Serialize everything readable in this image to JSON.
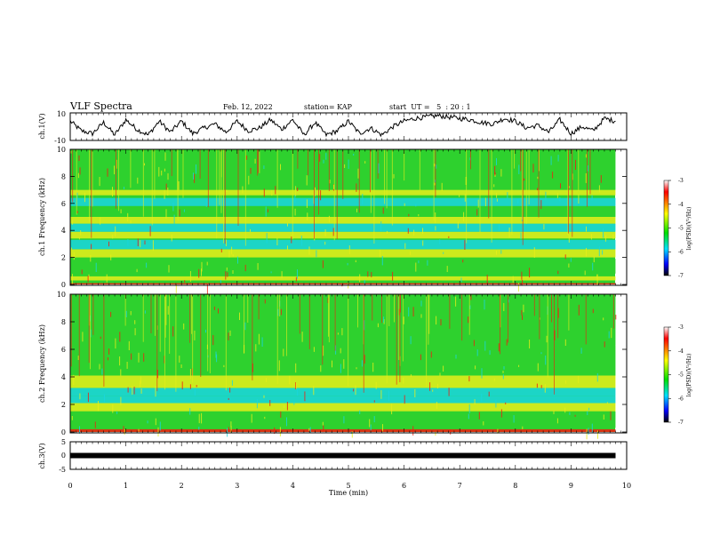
{
  "header": {
    "title": "VLF Spectra",
    "date": "Feb. 12, 2022",
    "station": "station= KAP",
    "start": "start  UT =   5  : 20 : 1"
  },
  "colors": {
    "trace": "#000000",
    "frame": "#000000",
    "spectrogram_bg": "#2ed12e"
  },
  "chart_data": [
    {
      "type": "line",
      "panel": "ch1_waveform",
      "ylabel": "ch.1(V)",
      "ylim": [
        -10,
        10
      ],
      "yticks": [
        "10",
        "-10"
      ],
      "xlim": [
        0,
        10
      ],
      "x_extent": [
        0,
        9.8
      ],
      "series": [
        {
          "x": [
            0,
            0.2,
            0.4,
            0.6,
            0.8,
            1.0,
            1.2,
            1.4,
            1.6,
            1.8,
            2.0,
            2.2,
            2.4,
            2.6,
            2.8,
            3.0,
            3.2,
            3.4,
            3.6,
            3.8,
            4.0,
            4.2,
            4.4,
            4.6,
            4.8,
            5.0,
            5.2,
            5.4,
            5.6,
            5.8,
            6.0,
            6.2,
            6.4,
            6.6,
            6.8,
            7.0,
            7.2,
            7.4,
            7.6,
            7.8,
            8.0,
            8.2,
            8.4,
            8.6,
            8.8,
            9.0,
            9.2,
            9.4,
            9.6,
            9.8
          ],
          "values": [
            4,
            -3,
            -5,
            3,
            -6,
            5,
            -2,
            -6,
            4,
            -4,
            4,
            -5,
            -1,
            2,
            -4,
            4,
            -3,
            -1,
            5,
            -2,
            5,
            -6,
            3,
            -6,
            -3,
            4,
            -5,
            -1,
            -6,
            0,
            4,
            6,
            7,
            8,
            7,
            6,
            5,
            3,
            2,
            6,
            4,
            -1,
            1,
            -4,
            5,
            -5,
            0,
            -3,
            6,
            4
          ]
        }
      ]
    },
    {
      "type": "heatmap",
      "panel": "ch1_spectrogram",
      "ylabel": "ch.1 Frequency (kHz)",
      "ylim": [
        0,
        10
      ],
      "yticks": [
        "0",
        "2",
        "4",
        "6",
        "8",
        "10"
      ],
      "xlim": [
        0,
        10
      ],
      "x_extent": [
        0,
        9.8
      ],
      "colorbar": {
        "label": "log(PSD)(V²/Hz)",
        "range": [
          -7,
          -3
        ],
        "ticks": [
          "-3",
          "-4",
          "-5",
          "-6",
          "-7"
        ]
      },
      "bands": [
        {
          "f": [
            0.0,
            0.1
          ],
          "level": "red"
        },
        {
          "f": [
            0.3,
            0.6
          ],
          "level": "yellow"
        },
        {
          "f": [
            0.8,
            1.9
          ],
          "level": "green"
        },
        {
          "f": [
            2.0,
            2.6
          ],
          "level": "yellow"
        },
        {
          "f": [
            2.6,
            3.3
          ],
          "level": "cyan"
        },
        {
          "f": [
            3.4,
            3.9
          ],
          "level": "yellow"
        },
        {
          "f": [
            3.9,
            4.5
          ],
          "level": "cyan"
        },
        {
          "f": [
            4.5,
            5.0
          ],
          "level": "yellow"
        },
        {
          "f": [
            5.0,
            5.8
          ],
          "level": "green"
        },
        {
          "f": [
            5.8,
            6.4
          ],
          "level": "cyan"
        },
        {
          "f": [
            6.6,
            7.0
          ],
          "level": "yellow"
        },
        {
          "f": [
            7.0,
            10.0
          ],
          "level": "green"
        }
      ]
    },
    {
      "type": "heatmap",
      "panel": "ch2_spectrogram",
      "ylabel": "ch.2 Frequency (kHz)",
      "ylim": [
        0,
        10
      ],
      "yticks": [
        "0",
        "2",
        "4",
        "6",
        "8",
        "10"
      ],
      "xlim": [
        0,
        10
      ],
      "x_extent": [
        0,
        9.8
      ],
      "colorbar": {
        "label": "log(PSD)(V²/Hz)",
        "range": [
          -7,
          -3
        ],
        "ticks": [
          "-3",
          "-4",
          "-5",
          "-6",
          "-7"
        ]
      },
      "bands": [
        {
          "f": [
            0.0,
            0.2
          ],
          "level": "red"
        },
        {
          "f": [
            0.3,
            1.5
          ],
          "level": "green"
        },
        {
          "f": [
            1.5,
            2.1
          ],
          "level": "yellow"
        },
        {
          "f": [
            2.1,
            2.6
          ],
          "level": "cyan"
        },
        {
          "f": [
            2.6,
            3.2
          ],
          "level": "cyan"
        },
        {
          "f": [
            3.2,
            4.1
          ],
          "level": "yellow"
        },
        {
          "f": [
            4.1,
            5.0
          ],
          "level": "green"
        },
        {
          "f": [
            5.0,
            6.3
          ],
          "level": "green"
        },
        {
          "f": [
            6.3,
            10.0
          ],
          "level": "green"
        }
      ]
    },
    {
      "type": "line",
      "panel": "ch3_waveform",
      "ylabel": "ch.3(V)",
      "ylim": [
        -5,
        5
      ],
      "yticks": [
        "5",
        "0",
        "-5"
      ],
      "xlim": [
        0,
        10
      ],
      "x_extent": [
        0,
        9.8
      ],
      "xlabel": "Time (min)",
      "xticks": [
        "0",
        "1",
        "2",
        "3",
        "4",
        "5",
        "6",
        "7",
        "8",
        "9",
        "10"
      ],
      "series": [
        {
          "x": [
            0,
            9.8
          ],
          "values": [
            0,
            0
          ]
        }
      ]
    }
  ]
}
